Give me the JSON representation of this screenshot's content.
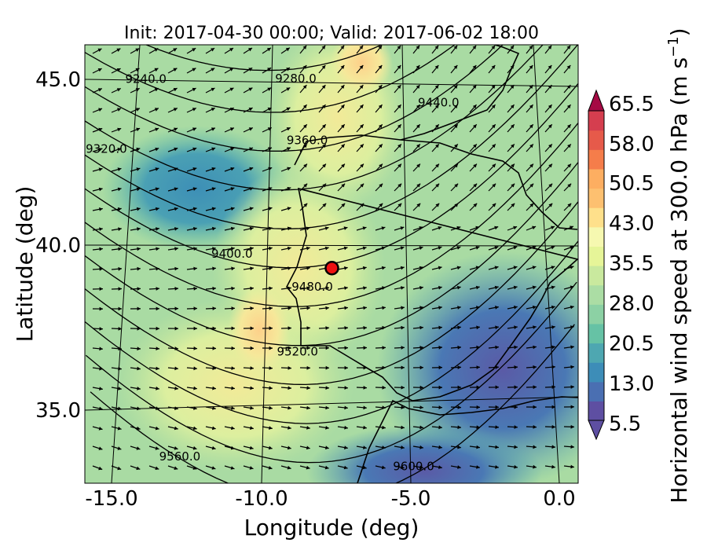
{
  "chart_data": {
    "type": "heatmap",
    "title": "Init: 2017-04-30 00:00; Valid: 2017-06-02 18:00",
    "xlabel": "Longitude (deg)",
    "ylabel": "Latitude (deg)",
    "xlim": [
      -16,
      0.3
    ],
    "ylim": [
      32.5,
      46
    ],
    "x_ticks": [
      "-15.0",
      "-10.0",
      "-5.0",
      "0.0"
    ],
    "y_ticks": [
      "35.0",
      "40.0",
      "45.0"
    ],
    "colorbar": {
      "label": "Horizontal wind speed at 300.0 hPa (m s",
      "label_superscript": "−1",
      "label_close": ")",
      "min": 5.5,
      "max": 65.5,
      "extend": "both",
      "ticks": [
        "5.5",
        "13.0",
        "20.5",
        "28.0",
        "35.5",
        "43.0",
        "50.5",
        "58.0",
        "65.5"
      ]
    },
    "contours": {
      "variable": "geopotential height",
      "labels": [
        {
          "text": "9240.0",
          "lon": -13.5,
          "lat": 45.2
        },
        {
          "text": "9280.0",
          "lon": -8.7,
          "lat": 45.0
        },
        {
          "text": "9320.0",
          "lon": -15.0,
          "lat": 43.0
        },
        {
          "text": "9360.0",
          "lon": -8.4,
          "lat": 43.1
        },
        {
          "text": "9400.0",
          "lon": -11.1,
          "lat": 39.6
        },
        {
          "text": "9440.0",
          "lon": -4.1,
          "lat": 44.1
        },
        {
          "text": "9480.0",
          "lon": -8.4,
          "lat": 38.6
        },
        {
          "text": "9520.0",
          "lon": -9.0,
          "lat": 36.6
        },
        {
          "text": "9560.0",
          "lon": -13.5,
          "lat": 33.1
        },
        {
          "text": "9600.0",
          "lon": -4.9,
          "lat": 33.3
        }
      ]
    },
    "marker": {
      "lon": -7.7,
      "lat": 39.3,
      "color": "#ee1111"
    },
    "colors": {
      "plot_background": "#a3d8a4",
      "contour": "#000000",
      "marker_fill": "#ee1111"
    }
  }
}
